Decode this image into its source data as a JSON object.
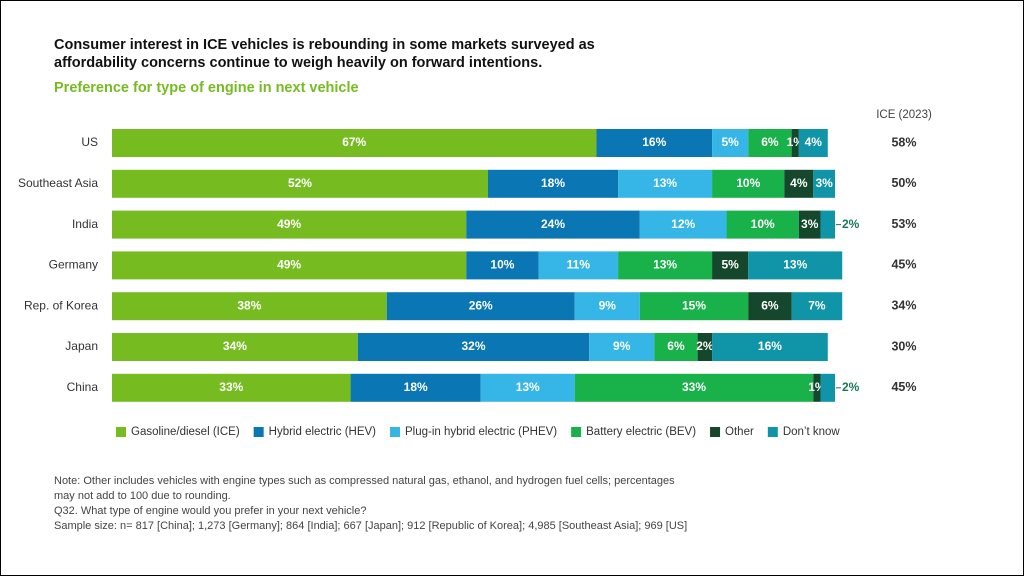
{
  "chart_data": {
    "type": "stacked_bar_horizontal",
    "title": [
      "Consumer interest in ICE vehicles is rebounding in some markets surveyed as",
      "affordability concerns continue to weigh heavily on forward intentions."
    ],
    "subtitle": "Preference for type of engine in next vehicle",
    "categories": [
      "US",
      "Southeast Asia",
      "India",
      "Germany",
      "Rep. of Korea",
      "Japan",
      "China"
    ],
    "series": [
      {
        "name": "Gasoline/diesel (ICE)",
        "color": "#76bc21",
        "values": [
          67,
          52,
          49,
          49,
          38,
          34,
          33
        ],
        "value_labels": [
          "67%",
          "52%",
          "49%",
          "49%",
          "38%",
          "34%",
          "33%"
        ]
      },
      {
        "name": "Hybrid electric (HEV)",
        "color": "#0a76b4",
        "values": [
          16,
          18,
          24,
          10,
          26,
          32,
          18
        ],
        "value_labels": [
          "16%",
          "18%",
          "24%",
          "10%",
          "26%",
          "32%",
          "18%"
        ]
      },
      {
        "name": "Plug-in hybrid electric (PHEV)",
        "color": "#35b6e6",
        "values": [
          5,
          13,
          12,
          11,
          9,
          9,
          13
        ],
        "value_labels": [
          "5%",
          "13%",
          "12%",
          "11%",
          "9%",
          "9%",
          "13%"
        ]
      },
      {
        "name": "Battery electric (BEV)",
        "color": "#18b14a",
        "values": [
          6,
          10,
          10,
          13,
          15,
          6,
          33
        ],
        "value_labels": [
          "6%",
          "10%",
          "10%",
          "13%",
          "15%",
          "6%",
          "33%"
        ]
      },
      {
        "name": "Other",
        "color": "#14472b",
        "values": [
          1,
          4,
          3,
          5,
          6,
          2,
          1
        ],
        "value_labels": [
          "1%",
          "4%",
          "3%",
          "5%",
          "6%",
          "2%",
          "1%"
        ]
      },
      {
        "name": "Don’t know",
        "color": "#0f94a8",
        "values": [
          4,
          3,
          2,
          13,
          7,
          16,
          2
        ],
        "value_labels": [
          "4%",
          "3%",
          "2%",
          "13%",
          "7%",
          "16%",
          "2%"
        ]
      }
    ],
    "ice_2023": {
      "label": "ICE (2023)",
      "values": [
        58,
        50,
        53,
        45,
        34,
        30,
        45
      ],
      "value_labels": [
        "58%",
        "50%",
        "53%",
        "45%",
        "34%",
        "30%",
        "45%"
      ]
    },
    "notes": [
      "Note: Other includes vehicles with engine types such as compressed natural gas, ethanol, and hydrogen fuel cells; percentages",
      "may not add to 100 due to rounding.",
      "Q32. What type of engine would you prefer in your next vehicle?",
      "Sample size: n= 817 [China]; 1,273 [Germany]; 864 [India]; 667 [Japan]; 912 [Republic of Korea]; 4,985 [Southeast Asia]; 969 [US]"
    ]
  }
}
